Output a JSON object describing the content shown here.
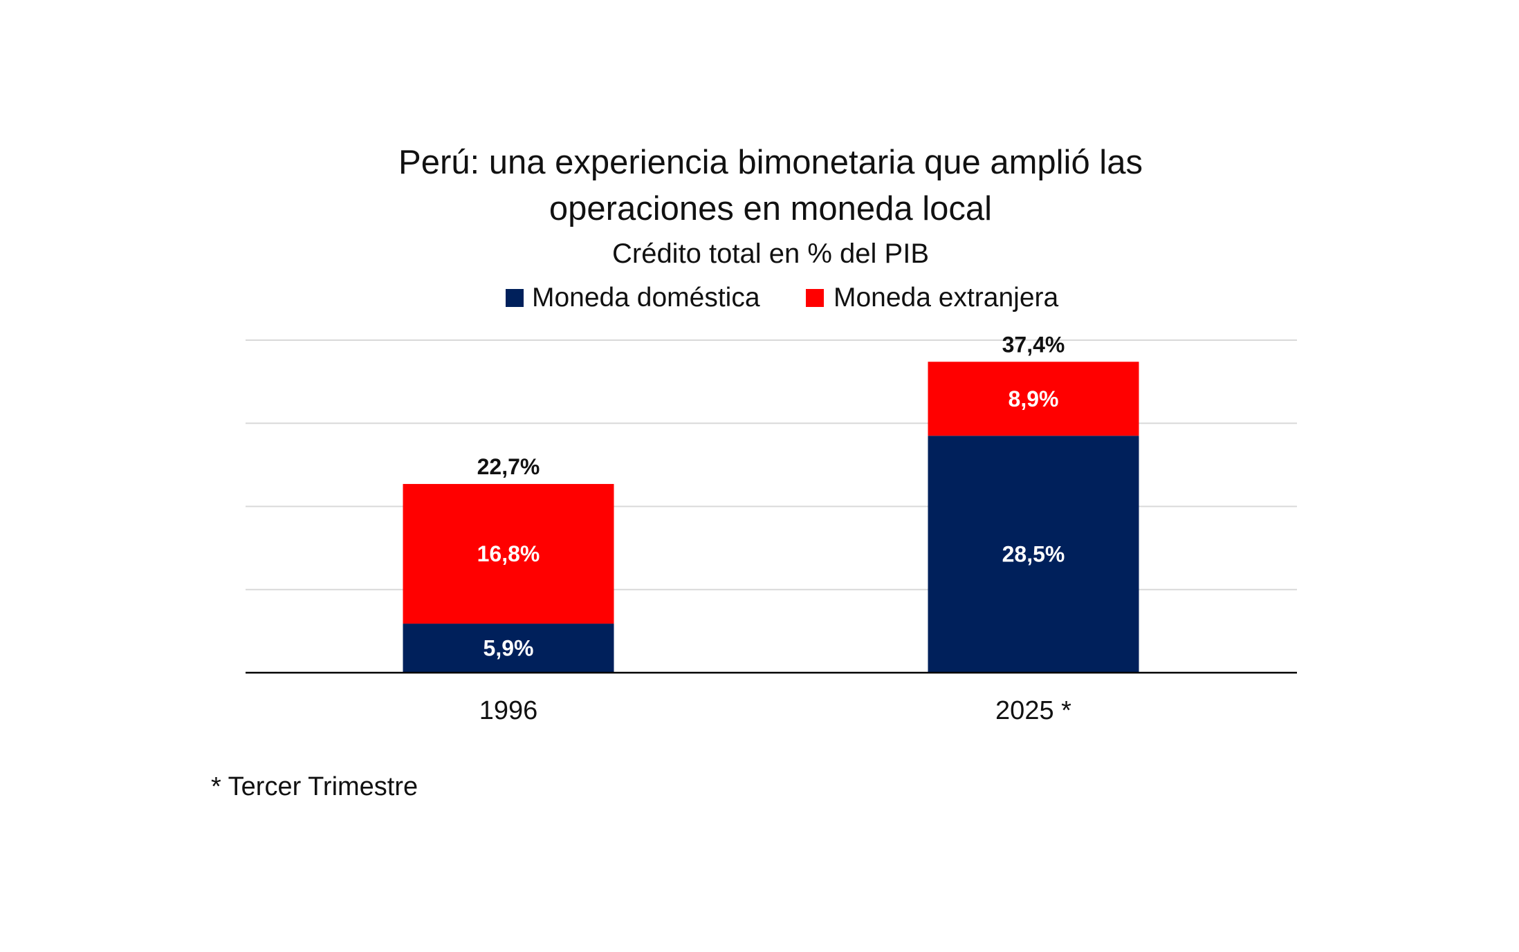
{
  "chart_data": {
    "type": "bar",
    "stacked": true,
    "title": "Perú: una experiencia bimonetaria que amplió las operaciones en moneda local",
    "title_lines": [
      "Perú: una experiencia bimonetaria que amplió las",
      "operaciones en moneda local"
    ],
    "subtitle": "Crédito total en % del PIB",
    "categories": [
      "1996",
      "2025 *"
    ],
    "series": [
      {
        "name": "Moneda doméstica",
        "color": "#00205b",
        "values": [
          5.9,
          28.5
        ],
        "labels": [
          "5,9%",
          "28,5%"
        ]
      },
      {
        "name": "Moneda extranjera",
        "color": "#ff0000",
        "values": [
          16.8,
          8.9
        ],
        "labels": [
          "16,8%",
          "8,9%"
        ]
      }
    ],
    "totals": [
      22.7,
      37.4
    ],
    "total_labels": [
      "22,7%",
      "37,4%"
    ],
    "ylim": [
      0,
      40
    ],
    "gridlines": [
      10,
      20,
      30,
      40
    ],
    "legend_position": "top",
    "xlabel": "",
    "ylabel": ""
  },
  "footnote": "* Tercer Trimestre"
}
